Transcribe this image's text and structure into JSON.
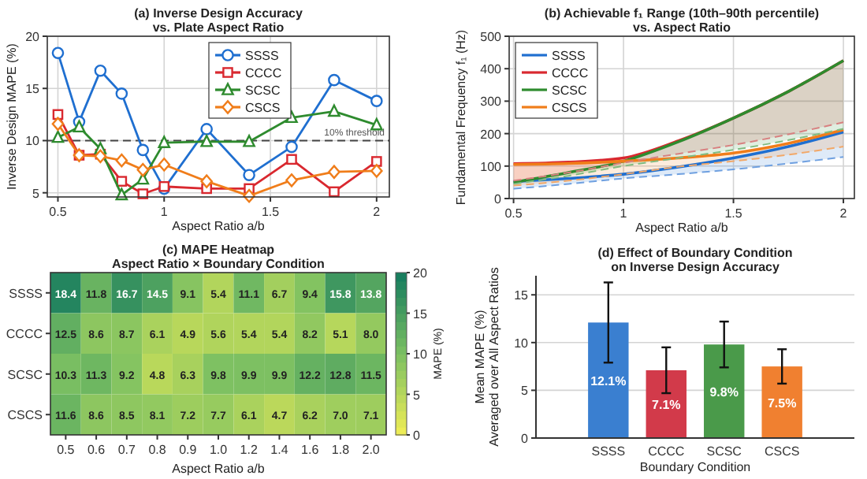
{
  "chart_data": [
    {
      "type": "line",
      "title": "(a)  Inverse Design Accuracy\nvs. Plate Aspect Ratio",
      "xlabel": "Aspect Ratio  a/b",
      "ylabel": "Inverse Design  MAPE (%)",
      "x": [
        0.5,
        0.6,
        0.7,
        0.8,
        0.9,
        1.0,
        1.2,
        1.4,
        1.6,
        1.8,
        2.0
      ],
      "xlim": [
        0.45,
        2.06
      ],
      "xticks": [
        0.5,
        1,
        1.5,
        2
      ],
      "ylim": [
        4.6,
        20
      ],
      "yticks": [
        5,
        10,
        15,
        20
      ],
      "grid": true,
      "legend": "top",
      "series": [
        {
          "name": "SSSS",
          "color": "#1f6fd0",
          "marker": "circle",
          "values": [
            18.4,
            11.8,
            16.7,
            14.5,
            9.1,
            5.4,
            11.1,
            6.7,
            9.4,
            15.8,
            13.8
          ]
        },
        {
          "name": "CCCC",
          "color": "#d9282f",
          "marker": "square",
          "values": [
            12.5,
            8.6,
            8.7,
            6.1,
            4.9,
            5.6,
            5.4,
            5.4,
            8.2,
            5.1,
            8.0
          ]
        },
        {
          "name": "SCSC",
          "color": "#2e8b2e",
          "marker": "triangle",
          "values": [
            10.3,
            11.3,
            9.2,
            4.8,
            6.3,
            9.8,
            9.9,
            9.9,
            12.2,
            12.8,
            11.5
          ]
        },
        {
          "name": "CSCS",
          "color": "#f07d1a",
          "marker": "diamond",
          "values": [
            11.6,
            8.6,
            8.5,
            8.1,
            7.2,
            7.7,
            6.1,
            4.7,
            6.2,
            7.0,
            7.1
          ]
        }
      ],
      "ref_lines": [
        {
          "axis": "y",
          "value": 10,
          "label": "10% threshold",
          "color": "#444444",
          "line_style": "dashed"
        }
      ]
    },
    {
      "type": "line",
      "title": "(b)   Achievable f₁ Range   (10th–90th percentile)\nvs. Aspect Ratio",
      "xlabel": "Aspect Ratio  a/b",
      "ylabel": "Fundamental Frequency f₁ (Hz)",
      "x": [
        0.5,
        0.75,
        1,
        1.25,
        1.5,
        1.75,
        2
      ],
      "xlim": [
        0.48,
        2.05
      ],
      "xticks": [
        0.5,
        1,
        1.5,
        2
      ],
      "ylim": [
        0,
        500
      ],
      "yticks": [
        0,
        100,
        200,
        300,
        400,
        500
      ],
      "grid": true,
      "legend": "top left",
      "series": [
        {
          "name": "SSSS",
          "color": "#1f6fd0",
          "values": [
            52,
            62,
            75,
            97,
            125,
            160,
            205
          ],
          "upper": [
            52,
            62,
            75,
            97,
            125,
            160,
            205
          ],
          "lower": [
            30,
            45,
            62,
            75,
            90,
            108,
            128
          ]
        },
        {
          "name": "CCCC",
          "color": "#d9282f",
          "values": [
            107,
            112,
            125,
            178,
            248,
            330,
            425
          ],
          "upper": [
            107,
            112,
            125,
            178,
            248,
            330,
            425
          ],
          "lower": [
            55,
            80,
            110,
            138,
            165,
            198,
            235
          ]
        },
        {
          "name": "SCSC",
          "color": "#2e8b2e",
          "values": [
            50,
            80,
            115,
            175,
            248,
            330,
            425
          ],
          "upper": [
            50,
            80,
            115,
            175,
            248,
            330,
            425
          ],
          "lower": [
            45,
            70,
            100,
            125,
            150,
            180,
            215
          ]
        },
        {
          "name": "CSCS",
          "color": "#f07d1a",
          "values": [
            105,
            108,
            115,
            125,
            140,
            170,
            212
          ],
          "upper": [
            105,
            108,
            115,
            125,
            140,
            170,
            212
          ],
          "lower": [
            40,
            55,
            75,
            98,
            115,
            135,
            160
          ]
        },
        {
          "color": "#6fa0e0",
          "line_style": "dashed",
          "values": [
            30,
            45,
            62,
            75,
            90,
            108,
            128
          ]
        },
        {
          "color": "#d88080",
          "line_style": "dashed",
          "values": [
            55,
            80,
            110,
            138,
            165,
            198,
            235
          ]
        },
        {
          "color": "#80bb80",
          "line_style": "dashed",
          "values": [
            45,
            70,
            100,
            125,
            150,
            180,
            215
          ]
        },
        {
          "color": "#f2a868",
          "line_style": "dashed",
          "values": [
            40,
            55,
            75,
            98,
            115,
            135,
            160
          ]
        }
      ]
    },
    {
      "type": "heatmap",
      "title": "(c)   MAPE Heatmap\nAspect Ratio  ×  Boundary  Condition",
      "xlabel": "Aspect Ratio  a/b",
      "clabel": "MAPE (%)",
      "categories": [
        "0.5",
        "0.6",
        "0.7",
        "0.8",
        "0.9",
        "1.0",
        "1.2",
        "1.4",
        "1.6",
        "1.8",
        "2.0"
      ],
      "y_categories": [
        "SSSS",
        "CCCC",
        "SCSC",
        "CSCS"
      ],
      "clim": [
        0,
        20
      ],
      "cticks": [
        0,
        5,
        10,
        15,
        20
      ],
      "cells": [
        [
          18.4,
          11.8,
          16.7,
          14.5,
          9.1,
          5.4,
          11.1,
          6.7,
          9.4,
          15.8,
          13.8
        ],
        [
          12.5,
          8.6,
          8.7,
          6.1,
          4.9,
          5.6,
          5.4,
          5.4,
          8.2,
          5.1,
          8.0
        ],
        [
          10.3,
          11.3,
          9.2,
          4.8,
          6.3,
          9.8,
          9.9,
          9.9,
          12.2,
          12.8,
          11.5
        ],
        [
          11.6,
          8.6,
          8.5,
          8.1,
          7.2,
          7.7,
          6.1,
          4.7,
          6.2,
          7.0,
          7.1
        ]
      ],
      "cell_labels": [
        [
          "18.4",
          "11.8",
          "16.7",
          "14.5",
          "9.1",
          "5.4",
          "11.1",
          "6.7",
          "9.4",
          "15.8",
          "13.8"
        ],
        [
          "12.5",
          "8.6",
          "8.7",
          "6.1",
          "4.9",
          "5.6",
          "5.4",
          "5.4",
          "8.2",
          "5.1",
          "8.0"
        ],
        [
          "10.3",
          "11.3",
          "9.2",
          "4.8",
          "6.3",
          "9.8",
          "9.9",
          "9.9",
          "12.2",
          "12.8",
          "11.5"
        ],
        [
          "11.6",
          "8.6",
          "8.5",
          "8.1",
          "7.2",
          "7.7",
          "6.1",
          "4.7",
          "6.2",
          "7.0",
          "7.1"
        ]
      ]
    },
    {
      "type": "bar",
      "title": "(d)  Effect of Boundary Condition\non Inverse Design Accuracy",
      "xlabel": "Boundary Condition",
      "ylabel": "Mean MAPE (%)\nAveraged over All Aspect Ratios",
      "categories": [
        "SSSS",
        "CCCC",
        "SCSC",
        "CSCS"
      ],
      "values": [
        12.1,
        7.1,
        9.8,
        7.5
      ],
      "colors": [
        "#3a7fd0",
        "#d23a4a",
        "#4a9a4a",
        "#f08030"
      ],
      "errors": [
        4.2,
        2.4,
        2.4,
        1.8
      ],
      "value_labels": [
        "12.1%",
        "7.1%",
        "9.8%",
        "7.5%"
      ],
      "ylim": [
        0,
        17
      ],
      "yticks": [
        0,
        5,
        10,
        15
      ],
      "grid": "y"
    }
  ]
}
